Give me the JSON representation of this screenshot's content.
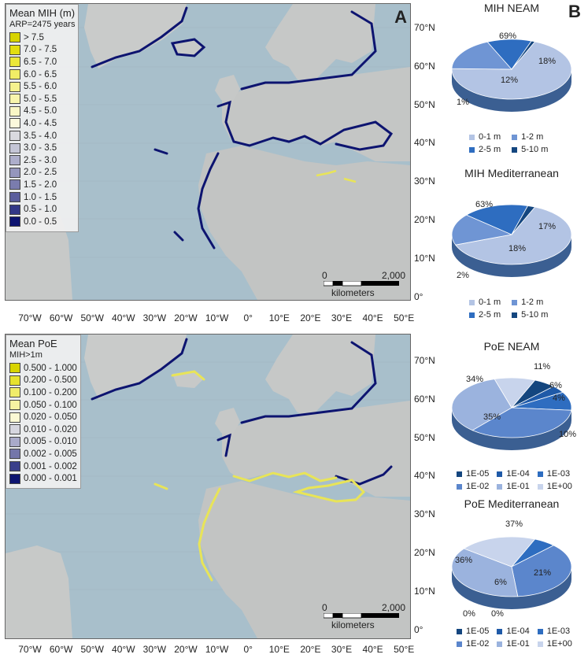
{
  "panel_letters": {
    "a": "A",
    "b": "B"
  },
  "map_top": {
    "legend_title": "Mean MIH (m)",
    "legend_subtitle": "ARP=2475 years",
    "legend_items": [
      {
        "label": "> 7.5",
        "color": "#d8d400"
      },
      {
        "label": "7.0 - 7.5",
        "color": "#e2de10"
      },
      {
        "label": "6.5 - 7.0",
        "color": "#ebe73a"
      },
      {
        "label": "6.0 - 6.5",
        "color": "#f1ed66"
      },
      {
        "label": "5.5 - 6.0",
        "color": "#f5f28e"
      },
      {
        "label": "5.0 - 5.5",
        "color": "#f8f5ac"
      },
      {
        "label": "4.5 - 5.0",
        "color": "#faf7c6"
      },
      {
        "label": "4.0 - 4.5",
        "color": "#fbf9dc"
      },
      {
        "label": "3.5 - 4.0",
        "color": "#d9d9df"
      },
      {
        "label": "3.0 - 3.5",
        "color": "#c4c5d6"
      },
      {
        "label": "2.5 - 3.0",
        "color": "#adaecb"
      },
      {
        "label": "2.0 - 2.5",
        "color": "#9596bd"
      },
      {
        "label": "1.5 - 2.0",
        "color": "#7a7cae"
      },
      {
        "label": "1.0 - 1.5",
        "color": "#5a5d9c"
      },
      {
        "label": "0.5 - 1.0",
        "color": "#333887"
      },
      {
        "label": "0.0 - 0.5",
        "color": "#0d1470"
      }
    ],
    "scale_zero": "0",
    "scale_max": "2,000",
    "scale_unit": "kilometers"
  },
  "map_bottom": {
    "legend_title": "Mean PoE",
    "legend_subtitle": "MIH>1m",
    "legend_items": [
      {
        "label": "0.500 - 1.000",
        "color": "#d8d400"
      },
      {
        "label": "0.200 - 0.500",
        "color": "#e6e22e"
      },
      {
        "label": "0.100 - 0.200",
        "color": "#f0ec6a"
      },
      {
        "label": "0.050 - 0.100",
        "color": "#f6f3a2"
      },
      {
        "label": "0.020 - 0.050",
        "color": "#fbf9d4"
      },
      {
        "label": "0.010 - 0.020",
        "color": "#d6d6df"
      },
      {
        "label": "0.005 - 0.010",
        "color": "#a9aac9"
      },
      {
        "label": "0.002 - 0.005",
        "color": "#7476aa"
      },
      {
        "label": "0.001 - 0.002",
        "color": "#3a3f8b"
      },
      {
        "label": "0.000 - 0.001",
        "color": "#0d1470"
      }
    ],
    "scale_zero": "0",
    "scale_max": "2,000",
    "scale_unit": "kilometers"
  },
  "lat_labels_top": [
    "70°N",
    "60°N",
    "50°N",
    "40°N",
    "30°N",
    "20°N",
    "10°N",
    "0°"
  ],
  "lat_labels_bottom": [
    "70°N",
    "60°N",
    "50°N",
    "40°N",
    "30°N",
    "20°N",
    "10°N",
    "0°"
  ],
  "lon_labels": [
    "70°W",
    "60°W",
    "50°W",
    "40°W",
    "30°W",
    "20°W",
    "10°W",
    "0°",
    "10°E",
    "20°E",
    "30°E",
    "40°E",
    "50°E"
  ],
  "chart_data": [
    {
      "type": "pie",
      "title": "MIH NEAM",
      "categories": [
        "0-1 m",
        "1-2 m",
        "2-5 m",
        "5-10 m"
      ],
      "values": [
        69,
        18,
        12,
        1
      ],
      "colors": [
        "#b3c4e4",
        "#6f95d4",
        "#2e6dc0",
        "#14467f"
      ]
    },
    {
      "type": "pie",
      "title": "MIH Mediterranean",
      "categories": [
        "0-1 m",
        "1-2 m",
        "2-5 m",
        "5-10 m"
      ],
      "values": [
        63,
        17,
        18,
        2
      ],
      "colors": [
        "#b3c4e4",
        "#6f95d4",
        "#2e6dc0",
        "#14467f"
      ]
    },
    {
      "type": "pie",
      "title": "PoE NEAM",
      "categories": [
        "1E-05",
        "1E-04",
        "1E-03",
        "1E-02",
        "1E-01",
        "1E+00"
      ],
      "values": [
        6,
        4,
        10,
        35,
        34,
        11
      ],
      "colors": [
        "#14467f",
        "#1f5aa8",
        "#2e6dc0",
        "#5b86cc",
        "#9bb3de",
        "#c8d4ec"
      ]
    },
    {
      "type": "pie",
      "title": "PoE Mediterranean",
      "categories": [
        "1E-05",
        "1E-04",
        "1E-03",
        "1E-02",
        "1E-01",
        "1E+00"
      ],
      "values": [
        0,
        0,
        6,
        36,
        37,
        21
      ],
      "colors": [
        "#14467f",
        "#1f5aa8",
        "#2e6dc0",
        "#5b86cc",
        "#9bb3de",
        "#c8d4ec"
      ]
    }
  ]
}
